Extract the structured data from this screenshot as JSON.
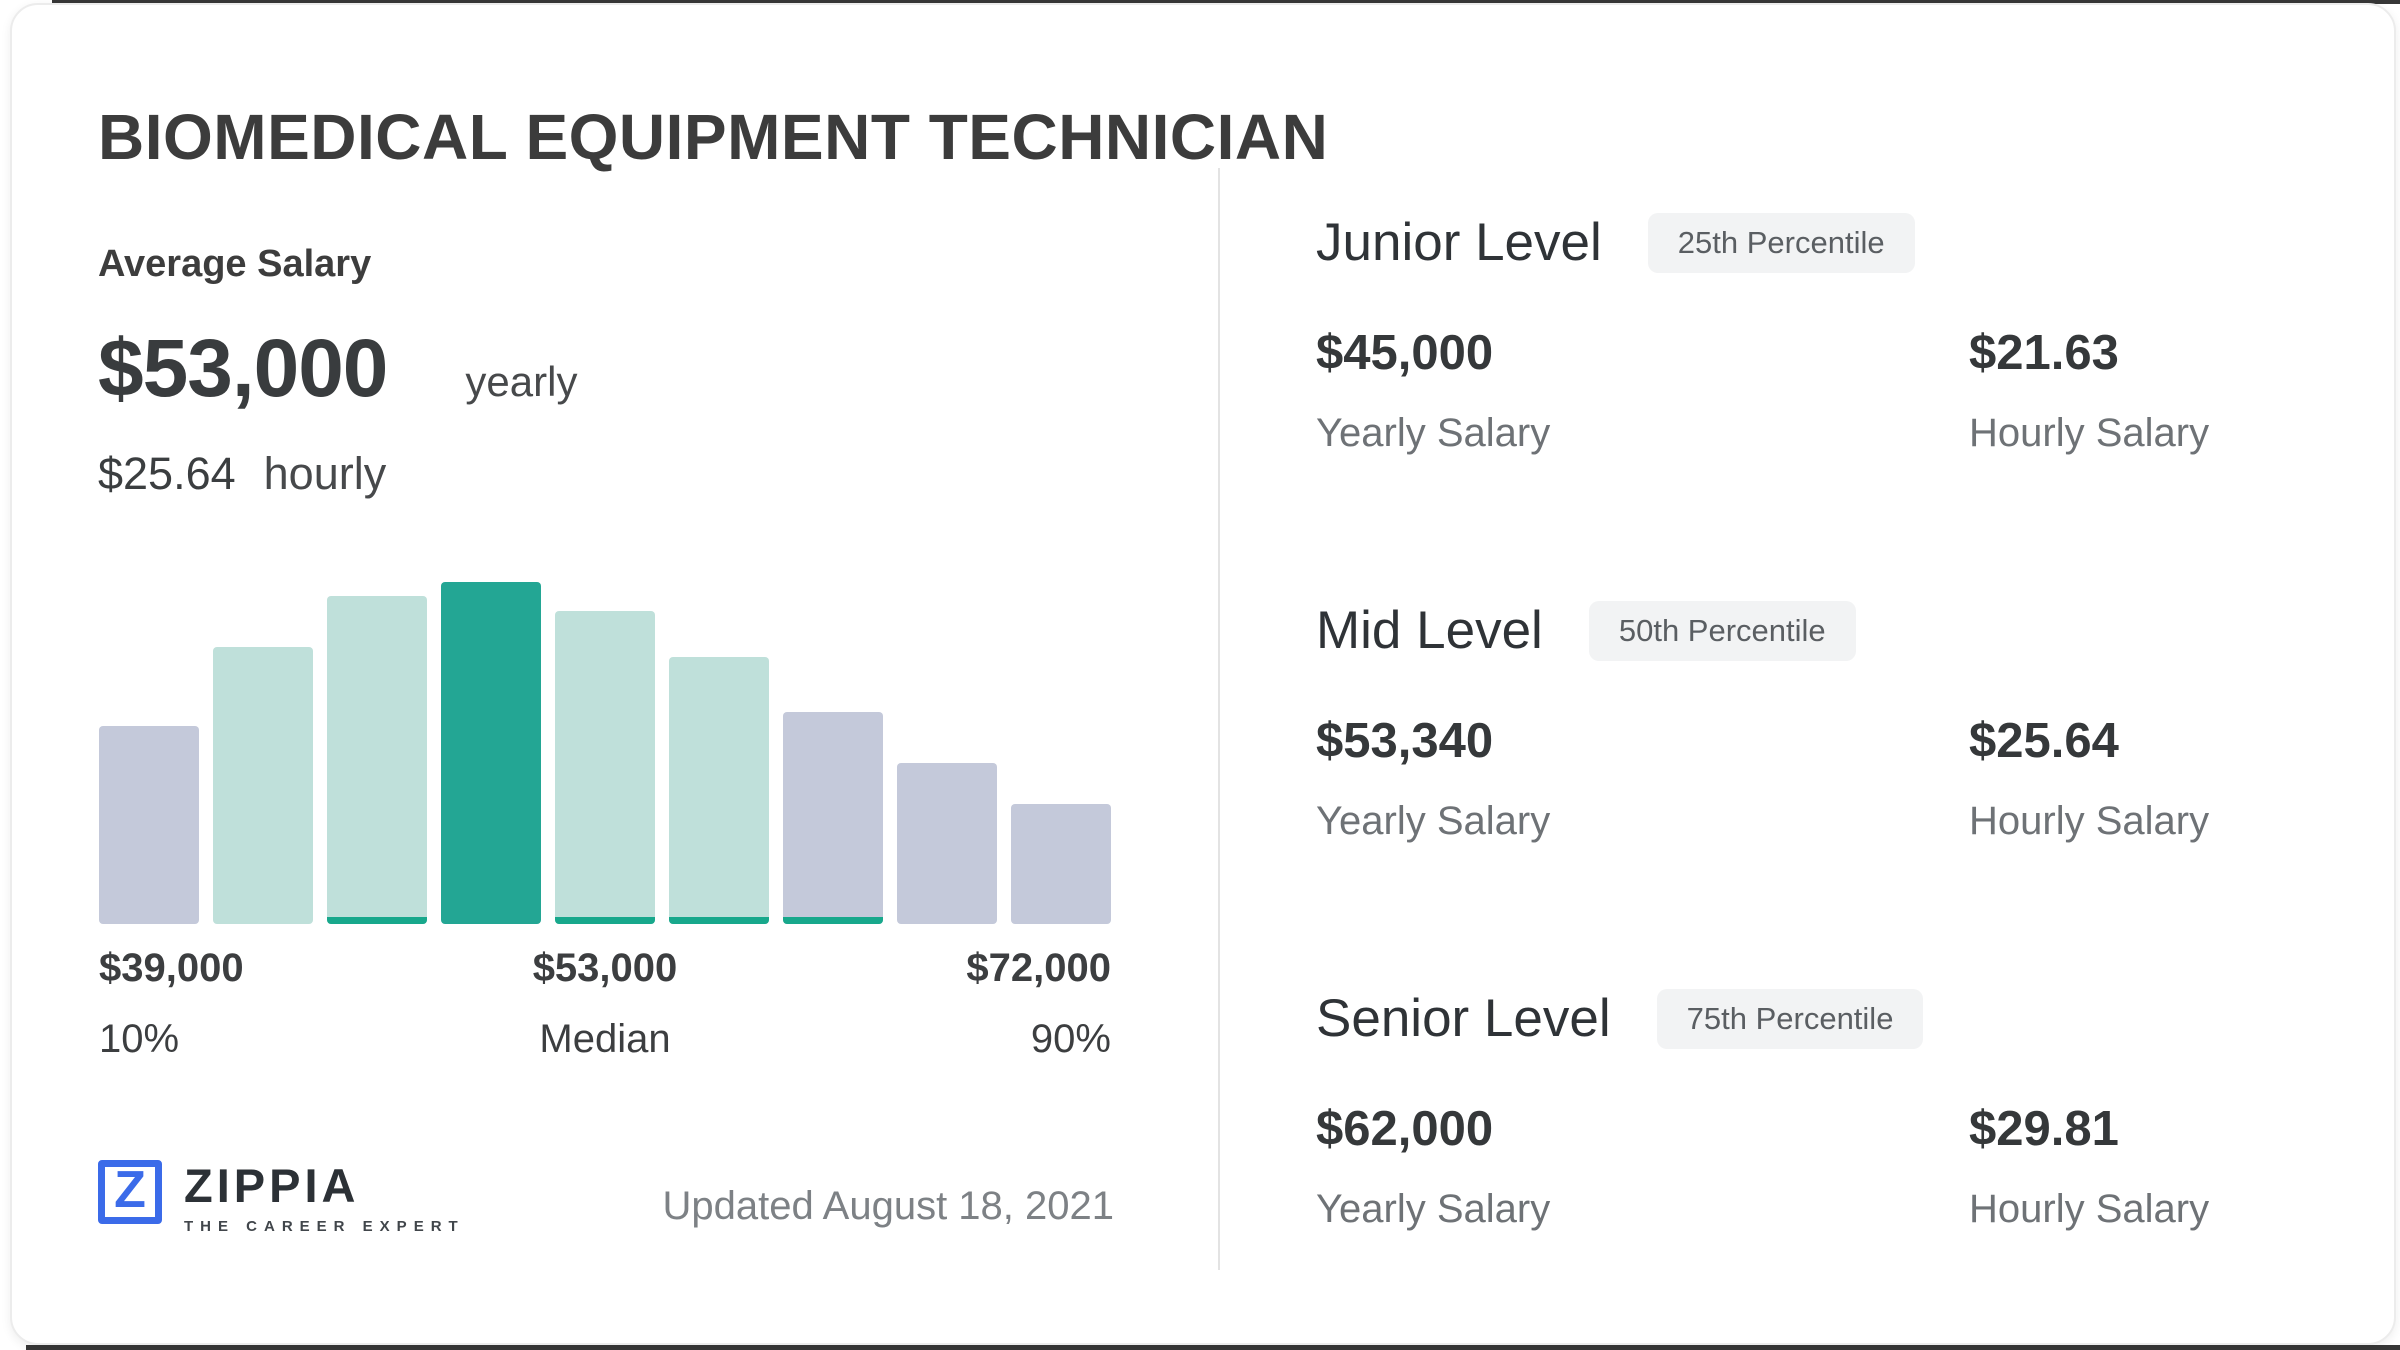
{
  "title": "BIOMEDICAL EQUIPMENT TECHNICIAN",
  "average": {
    "label": "Average Salary",
    "yearly_value": "$53,000",
    "yearly_unit": "yearly",
    "hourly_value": "$25.64",
    "hourly_unit": "hourly"
  },
  "chart_data": {
    "type": "bar",
    "title": "Salary distribution histogram",
    "legend": "none",
    "axes": "unlabeled, annotated with 10th/50th/90th percentile salaries",
    "bars": [
      {
        "rel_height": 0.58,
        "style": "muted",
        "accent_strip": false
      },
      {
        "rel_height": 0.81,
        "style": "tint",
        "accent_strip": false
      },
      {
        "rel_height": 0.96,
        "style": "tint",
        "accent_strip": true
      },
      {
        "rel_height": 1.0,
        "style": "accent",
        "accent_strip": false
      },
      {
        "rel_height": 0.915,
        "style": "tint",
        "accent_strip": true
      },
      {
        "rel_height": 0.78,
        "style": "tint",
        "accent_strip": true
      },
      {
        "rel_height": 0.62,
        "style": "muted",
        "accent_strip": true
      },
      {
        "rel_height": 0.47,
        "style": "muted",
        "accent_strip": false
      },
      {
        "rel_height": 0.35,
        "style": "muted",
        "accent_strip": false
      }
    ],
    "colors": {
      "accent": "#23a694",
      "tint": "#bfe0da",
      "muted": "#c4c9da",
      "strip": "#18a88c"
    },
    "x_annotations": [
      {
        "value": "$39,000",
        "label": "10%"
      },
      {
        "value": "$53,000",
        "label": "Median"
      },
      {
        "value": "$72,000",
        "label": "90%"
      }
    ]
  },
  "levels": [
    {
      "name": "Junior Level",
      "badge": "25th Percentile",
      "yearly_value": "$45,000",
      "yearly_label": "Yearly Salary",
      "hourly_value": "$21.63",
      "hourly_label": "Hourly Salary"
    },
    {
      "name": "Mid Level",
      "badge": "50th Percentile",
      "yearly_value": "$53,340",
      "yearly_label": "Yearly Salary",
      "hourly_value": "$25.64",
      "hourly_label": "Hourly Salary"
    },
    {
      "name": "Senior Level",
      "badge": "75th Percentile",
      "yearly_value": "$62,000",
      "yearly_label": "Yearly Salary",
      "hourly_value": "$29.81",
      "hourly_label": "Hourly Salary"
    }
  ],
  "footer": {
    "logo_letter": "Z",
    "logo_text": "ZIPPIA",
    "logo_tagline": "THE CAREER EXPERT",
    "updated": "Updated August 18, 2021"
  },
  "brand": {
    "zippia_blue": "#3b6be9"
  }
}
